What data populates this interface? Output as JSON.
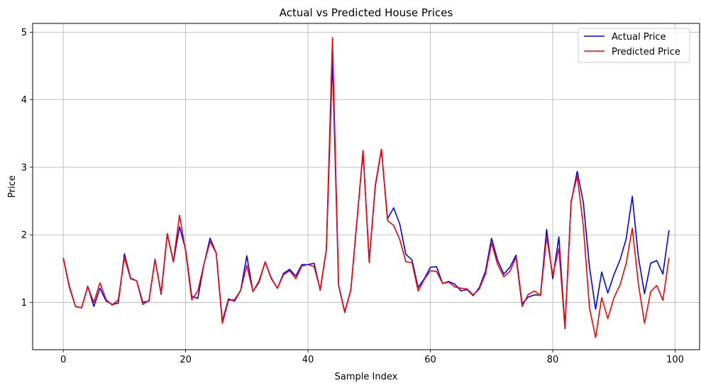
{
  "chart_data": {
    "type": "line",
    "title": "Actual vs Predicted House Prices",
    "xlabel": "Sample Index",
    "ylabel": "Price",
    "xlim": [
      -5,
      104
    ],
    "ylim": [
      0.3,
      5.13
    ],
    "xticks": [
      0,
      20,
      40,
      60,
      80,
      100
    ],
    "yticks": [
      1,
      2,
      3,
      4,
      5
    ],
    "grid": true,
    "legend_position": "top-right",
    "series": [
      {
        "name": "Actual Price",
        "color": "#0000ff",
        "values": [
          1.66,
          1.24,
          0.94,
          0.92,
          1.24,
          0.94,
          1.21,
          1.02,
          0.97,
          0.99,
          1.72,
          1.36,
          1.32,
          1.0,
          1.02,
          1.64,
          1.12,
          2.01,
          1.6,
          2.12,
          1.78,
          1.09,
          1.06,
          1.57,
          1.95,
          1.73,
          0.72,
          1.05,
          1.02,
          1.18,
          1.69,
          1.16,
          1.3,
          1.6,
          1.36,
          1.21,
          1.43,
          1.49,
          1.39,
          1.56,
          1.56,
          1.58,
          1.18,
          1.78,
          4.6,
          1.26,
          0.86,
          1.18,
          2.21,
          3.24,
          1.62,
          2.72,
          3.26,
          2.24,
          2.4,
          2.16,
          1.71,
          1.63,
          1.22,
          1.35,
          1.52,
          1.53,
          1.28,
          1.31,
          1.27,
          1.17,
          1.19,
          1.1,
          1.22,
          1.46,
          1.95,
          1.62,
          1.42,
          1.52,
          1.7,
          0.98,
          1.08,
          1.11,
          1.11,
          2.08,
          1.35,
          1.97,
          0.63,
          2.48,
          2.94,
          2.48,
          1.53,
          0.9,
          1.45,
          1.14,
          1.41,
          1.63,
          1.94,
          2.57,
          1.67,
          1.13,
          1.58,
          1.62,
          1.42,
          2.07
        ]
      },
      {
        "name": "Predicted Price",
        "color": "#ff0000",
        "values": [
          1.66,
          1.22,
          0.94,
          0.92,
          1.23,
          1.0,
          1.29,
          1.04,
          0.96,
          1.04,
          1.67,
          1.35,
          1.32,
          0.97,
          1.03,
          1.63,
          1.14,
          2.02,
          1.61,
          2.29,
          1.76,
          1.04,
          1.17,
          1.57,
          1.9,
          1.73,
          0.69,
          1.03,
          1.04,
          1.18,
          1.55,
          1.16,
          1.32,
          1.6,
          1.35,
          1.21,
          1.41,
          1.47,
          1.35,
          1.54,
          1.56,
          1.53,
          1.19,
          1.79,
          4.92,
          1.25,
          0.85,
          1.19,
          2.2,
          3.25,
          1.59,
          2.74,
          3.27,
          2.21,
          2.14,
          1.93,
          1.6,
          1.59,
          1.17,
          1.34,
          1.47,
          1.46,
          1.28,
          1.3,
          1.23,
          1.21,
          1.2,
          1.11,
          1.2,
          1.42,
          1.88,
          1.56,
          1.38,
          1.46,
          1.67,
          0.94,
          1.12,
          1.17,
          1.1,
          1.97,
          1.4,
          1.8,
          0.61,
          2.5,
          2.87,
          2.13,
          0.92,
          0.48,
          1.07,
          0.76,
          1.07,
          1.26,
          1.58,
          2.1,
          1.27,
          0.69,
          1.16,
          1.25,
          1.03,
          1.66
        ]
      }
    ]
  }
}
